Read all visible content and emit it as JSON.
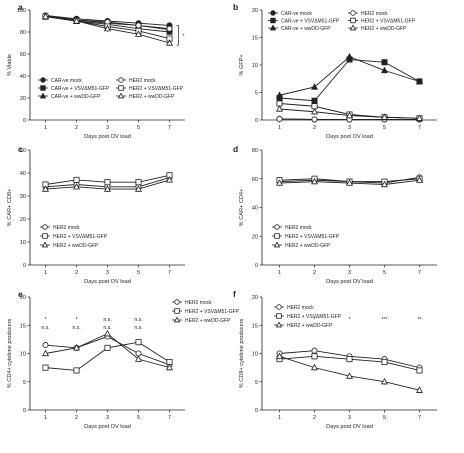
{
  "figure": {
    "panels": [
      "a",
      "b",
      "c",
      "d",
      "e",
      "f"
    ]
  },
  "chart_data": [
    {
      "id": "a",
      "type": "line",
      "panel_label": "a",
      "xlabel": "Days post OV load",
      "ylabel": "% Viable",
      "categories": [
        "1",
        "2",
        "3",
        "5",
        "7"
      ],
      "ylim": [
        0,
        100
      ],
      "yticks": [
        0,
        20,
        40,
        60,
        80,
        100
      ],
      "legend": "bottom",
      "series": [
        {
          "name": "CAR-ve mock",
          "marker": "circle",
          "filled": true,
          "values": [
            95,
            92,
            90,
            88,
            86
          ]
        },
        {
          "name": "CAR-ve + VSVΔM51-GFP",
          "marker": "square",
          "filled": true,
          "values": [
            94,
            91,
            88,
            86,
            82
          ]
        },
        {
          "name": "CAR-ve + wwDD-GFP",
          "marker": "triangle",
          "filled": true,
          "values": [
            94,
            90,
            87,
            83,
            80
          ]
        },
        {
          "name": "HER2 mock",
          "marker": "circle",
          "filled": false,
          "values": [
            95,
            91,
            89,
            86,
            83
          ]
        },
        {
          "name": "HER2 + VSVΔM51-GFP",
          "marker": "square",
          "filled": false,
          "values": [
            94,
            90,
            85,
            81,
            74
          ]
        },
        {
          "name": "HER2 + wwDD-GFP",
          "marker": "triangle",
          "filled": false,
          "values": [
            94,
            90,
            83,
            78,
            70
          ]
        }
      ],
      "annotations": [
        {
          "text": "*",
          "x": "7",
          "y": 80
        }
      ]
    },
    {
      "id": "b",
      "type": "line",
      "panel_label": "b",
      "xlabel": "Days post OV load",
      "ylabel": "% GFP+",
      "categories": [
        "1",
        "2",
        "3",
        "5",
        "7"
      ],
      "ylim": [
        0,
        20
      ],
      "yticks": [
        0,
        5,
        10,
        15,
        20
      ],
      "legend": "top",
      "series": [
        {
          "name": "CAR-ve mock",
          "marker": "circle",
          "filled": true,
          "values": [
            0.2,
            0.1,
            0.1,
            0.1,
            0.1
          ]
        },
        {
          "name": "CAR-ve + VSVΔM51-GFP",
          "marker": "square",
          "filled": true,
          "values": [
            4,
            3.5,
            11,
            10.5,
            7
          ]
        },
        {
          "name": "CAR-ve + wwDD-GFP",
          "marker": "triangle",
          "filled": true,
          "values": [
            4.5,
            6,
            11.5,
            9,
            7
          ]
        },
        {
          "name": "HER2 mock",
          "marker": "circle",
          "filled": false,
          "values": [
            0.2,
            0.1,
            0.1,
            0.1,
            0.1
          ]
        },
        {
          "name": "HER2 + VSVΔM51-GFP",
          "marker": "square",
          "filled": false,
          "values": [
            3,
            2.5,
            1,
            0.5,
            0.3
          ]
        },
        {
          "name": "HER2 + wwDD-GFP",
          "marker": "triangle",
          "filled": false,
          "values": [
            2,
            1.5,
            0.8,
            0.5,
            0.3
          ]
        }
      ]
    },
    {
      "id": "c",
      "type": "line",
      "panel_label": "c",
      "xlabel": "Days post OV load",
      "ylabel": "% CAR+ CD8+",
      "categories": [
        "1",
        "2",
        "3",
        "5",
        "7"
      ],
      "ylim": [
        0,
        50
      ],
      "yticks": [
        0,
        10,
        20,
        30,
        40,
        50
      ],
      "legend": "bottom-left",
      "series": [
        {
          "name": "HER2 mock",
          "marker": "circle",
          "filled": false,
          "values": [
            34,
            35,
            34,
            34,
            38
          ]
        },
        {
          "name": "HER2 + VSVΔM51-GFP",
          "marker": "square",
          "filled": false,
          "values": [
            35,
            37,
            36,
            36,
            39
          ]
        },
        {
          "name": "HER2 + wwDD-GFP",
          "marker": "triangle",
          "filled": false,
          "values": [
            33,
            34,
            33,
            33,
            37
          ]
        }
      ]
    },
    {
      "id": "d",
      "type": "line",
      "panel_label": "d",
      "xlabel": "Days post OV load",
      "ylabel": "% CAR+ CD4+",
      "categories": [
        "1",
        "2",
        "3",
        "5",
        "7"
      ],
      "ylim": [
        0,
        80
      ],
      "yticks": [
        0,
        20,
        40,
        60,
        80
      ],
      "legend": "bottom-left",
      "series": [
        {
          "name": "HER2 mock",
          "marker": "circle",
          "filled": false,
          "values": [
            58,
            59,
            58,
            57,
            61
          ]
        },
        {
          "name": "HER2 + VSVΔM51-GFP",
          "marker": "square",
          "filled": false,
          "values": [
            59,
            60,
            58,
            58,
            60
          ]
        },
        {
          "name": "HER2 + wwDD-GFP",
          "marker": "triangle",
          "filled": false,
          "values": [
            57,
            58,
            57,
            56,
            59
          ]
        }
      ]
    },
    {
      "id": "e",
      "type": "line",
      "panel_label": "e",
      "xlabel": "Days post OV load",
      "ylabel": "% CD4+ cytokine producers",
      "categories": [
        "1",
        "2",
        "3",
        "5",
        "7"
      ],
      "ylim": [
        0,
        20
      ],
      "yticks": [
        0,
        5,
        10,
        15,
        20
      ],
      "legend": "top-right",
      "series": [
        {
          "name": "HER2 mock",
          "marker": "circle",
          "filled": false,
          "values": [
            11.5,
            11,
            13,
            10,
            8
          ]
        },
        {
          "name": "HER2 + VSVΔM51-GFP",
          "marker": "square",
          "filled": false,
          "values": [
            7.5,
            7,
            11,
            12,
            8.5
          ]
        },
        {
          "name": "HER2 + wwDD-GFP",
          "marker": "triangle",
          "filled": false,
          "values": [
            10,
            11,
            13.5,
            9,
            7.5
          ]
        }
      ],
      "significance": [
        {
          "x": "1",
          "marks": [
            "*",
            "n.s."
          ]
        },
        {
          "x": "2",
          "marks": [
            "*",
            "n.s."
          ]
        },
        {
          "x": "3",
          "marks": [
            "n.s.",
            "n.s."
          ]
        },
        {
          "x": "5",
          "marks": [
            "n.s.",
            "n.s."
          ]
        }
      ]
    },
    {
      "id": "f",
      "type": "line",
      "panel_label": "f",
      "xlabel": "Days post OV load",
      "ylabel": "% CD8+ cytokine producers",
      "categories": [
        "1",
        "2",
        "3",
        "5",
        "7"
      ],
      "ylim": [
        0,
        20
      ],
      "yticks": [
        0,
        5,
        10,
        15,
        20
      ],
      "legend": "top-left",
      "series": [
        {
          "name": "HER2 mock",
          "marker": "circle",
          "filled": false,
          "values": [
            10,
            10.5,
            9.5,
            9,
            7.5
          ]
        },
        {
          "name": "HER2 + VSVΔM51-GFP",
          "marker": "square",
          "filled": false,
          "values": [
            9,
            9.5,
            9,
            8.5,
            7
          ]
        },
        {
          "name": "HER2 + wwDD-GFP",
          "marker": "triangle",
          "filled": false,
          "values": [
            9.5,
            7.5,
            6,
            5,
            3.5
          ]
        }
      ],
      "significance": [
        {
          "x": "2",
          "marks": [
            "*"
          ]
        },
        {
          "x": "3",
          "marks": [
            "*"
          ]
        },
        {
          "x": "5",
          "marks": [
            "***"
          ]
        },
        {
          "x": "7",
          "marks": [
            "**"
          ]
        }
      ]
    }
  ]
}
